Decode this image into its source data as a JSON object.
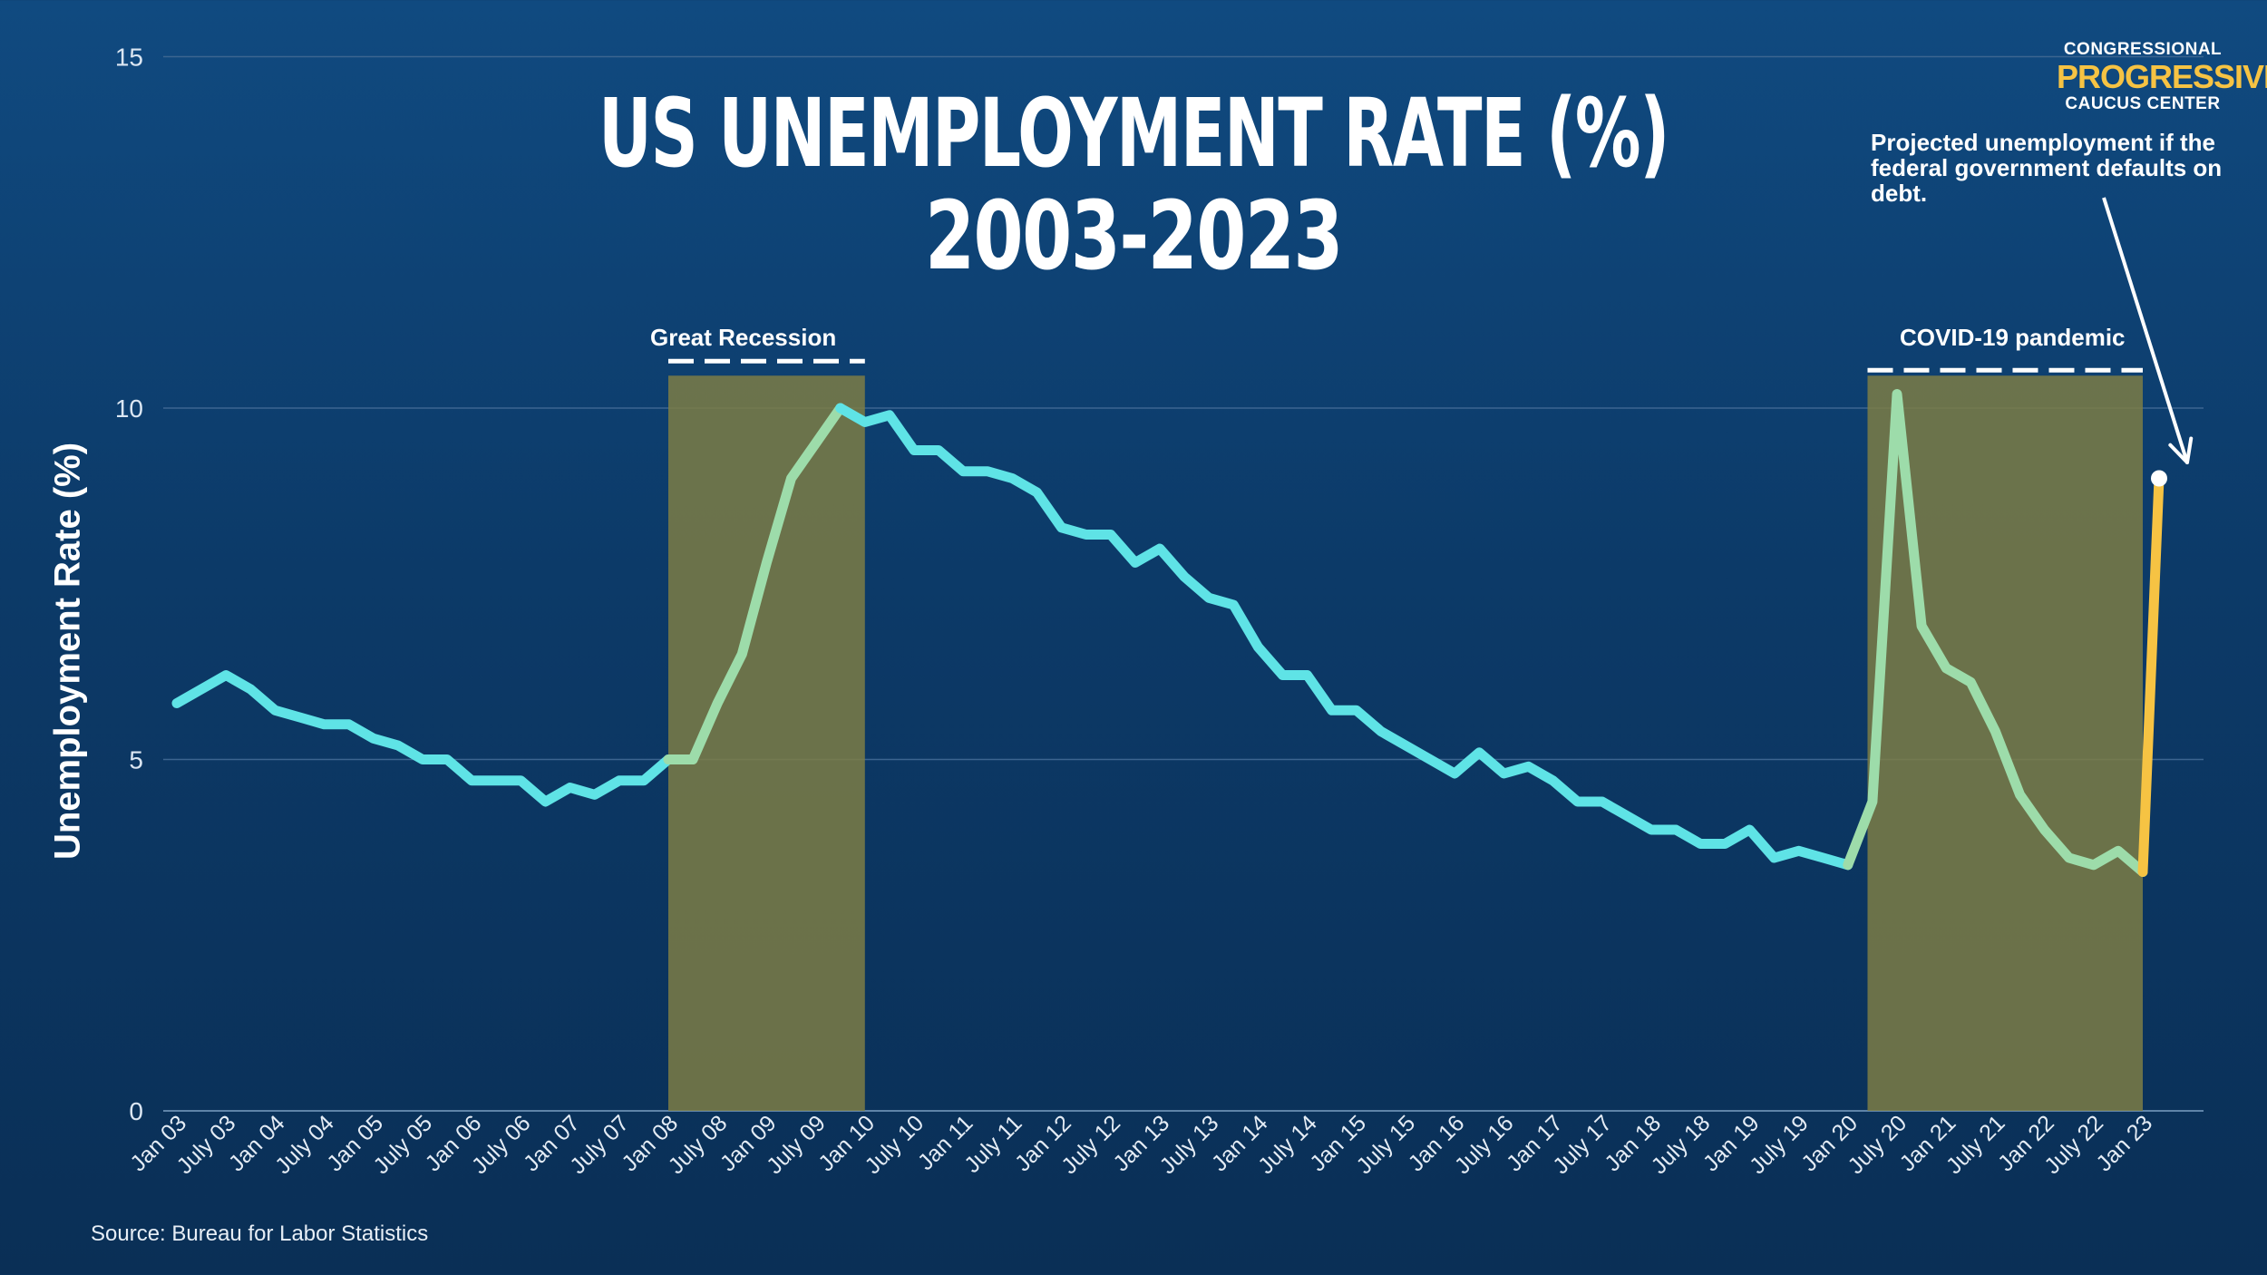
{
  "title_line1": "US UNEMPLOYMENT RATE (%)",
  "title_line2": "2003-2023",
  "logo": {
    "line1": "CONGRESSIONAL",
    "line2": "PROGRESSIVE",
    "line3": "CAUCUS CENTER"
  },
  "source": "Source: Bureau for Labor Statistics",
  "projection_note": "Projected unemployment if the federal government defaults on debt.",
  "colors": {
    "main_line": "#5fe3e6",
    "recession_line": "#9ddcaa",
    "projection_line": "#f6c343",
    "band": "#7c7d45"
  },
  "chart_data": {
    "type": "line",
    "title": "US UNEMPLOYMENT RATE (%) 2003-2023",
    "xlabel": "",
    "ylabel": "Unemployment Rate (%)",
    "ylim": [
      0,
      15
    ],
    "yticks": [
      0,
      5,
      10,
      15
    ],
    "grid": true,
    "x_tick_labels": [
      "Jan 03",
      "July 03",
      "Jan 04",
      "July 04",
      "Jan 05",
      "July 05",
      "Jan 06",
      "July 06",
      "Jan 07",
      "July 07",
      "Jan 08",
      "July 08",
      "Jan 09",
      "July 09",
      "Jan 10",
      "July 10",
      "Jan 11",
      "July 11",
      "Jan 12",
      "July 12",
      "Jan 13",
      "July 13",
      "Jan 14",
      "July 14",
      "Jan 15",
      "July 15",
      "Jan 16",
      "July 16",
      "Jan 17",
      "July 17",
      "Jan 18",
      "July 18",
      "Jan 19",
      "July 19",
      "Jan 20",
      "July 20",
      "Jan 21",
      "July 21",
      "Jan 22",
      "July 22",
      "Jan 23"
    ],
    "series": [
      {
        "name": "Unemployment rate",
        "values": [
          5.8,
          6.0,
          6.2,
          6.0,
          5.7,
          5.6,
          5.5,
          5.5,
          5.3,
          5.2,
          5.0,
          5.0,
          4.7,
          4.7,
          4.7,
          4.4,
          4.6,
          4.5,
          4.7,
          4.7,
          5.0,
          5.0,
          5.8,
          6.5,
          7.8,
          9.0,
          9.5,
          10.0,
          9.8,
          9.9,
          9.4,
          9.4,
          9.1,
          9.1,
          9.0,
          8.8,
          8.3,
          8.2,
          8.2,
          7.8,
          8.0,
          7.6,
          7.3,
          7.2,
          6.6,
          6.2,
          6.2,
          5.7,
          5.7,
          5.4,
          5.2,
          5.0,
          4.8,
          5.1,
          4.8,
          4.9,
          4.7,
          4.4,
          4.4,
          4.2,
          4.0,
          4.0,
          3.8,
          3.8,
          4.0,
          3.6,
          3.7,
          3.6,
          3.5,
          4.4,
          10.2,
          6.9,
          6.3,
          6.1,
          5.4,
          4.5,
          4.0,
          3.6,
          3.5,
          3.7,
          3.4
        ]
      },
      {
        "name": "Projected unemployment if default",
        "x_index": [
          80,
          81
        ],
        "values": [
          3.4,
          9.0
        ]
      }
    ],
    "shaded_periods": [
      {
        "label": "Great Recession",
        "start_index": 20,
        "end_index": 28
      },
      {
        "label": "COVID-19 pandemic",
        "start_index": 68.8,
        "end_index": 80
      }
    ],
    "highlighted_ranges": [
      {
        "name": "Great Recession",
        "start_index": 20,
        "end_index": 27
      },
      {
        "name": "COVID-19 pandemic",
        "start_index": 68,
        "end_index": 80
      }
    ]
  }
}
